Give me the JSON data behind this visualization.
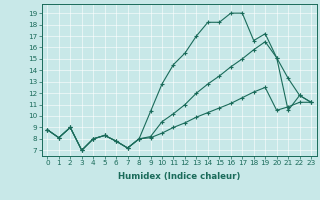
{
  "title": "",
  "xlabel": "Humidex (Indice chaleur)",
  "bg_color": "#c8e8e8",
  "line_color": "#1a6b5a",
  "xlim": [
    -0.5,
    23.5
  ],
  "ylim": [
    6.5,
    19.8
  ],
  "yticks": [
    7,
    8,
    9,
    10,
    11,
    12,
    13,
    14,
    15,
    16,
    17,
    18,
    19
  ],
  "xticks": [
    0,
    1,
    2,
    3,
    4,
    5,
    6,
    7,
    8,
    9,
    10,
    11,
    12,
    13,
    14,
    15,
    16,
    17,
    18,
    19,
    20,
    21,
    22,
    23
  ],
  "line1_x": [
    0,
    1,
    2,
    3,
    4,
    5,
    6,
    7,
    8,
    9,
    10,
    11,
    12,
    13,
    14,
    15,
    16,
    17,
    18,
    19,
    20,
    21,
    22,
    23
  ],
  "line1_y": [
    8.8,
    8.1,
    9.0,
    7.0,
    8.0,
    8.3,
    7.8,
    7.2,
    8.0,
    10.4,
    12.8,
    14.5,
    15.5,
    17.0,
    18.2,
    18.2,
    19.0,
    19.0,
    16.6,
    17.2,
    15.1,
    13.3,
    11.8,
    11.2
  ],
  "line2_x": [
    0,
    1,
    2,
    3,
    4,
    5,
    6,
    7,
    8,
    9,
    10,
    11,
    12,
    13,
    14,
    15,
    16,
    17,
    18,
    19,
    20,
    21,
    22,
    23
  ],
  "line2_y": [
    8.8,
    8.1,
    9.0,
    7.0,
    8.0,
    8.3,
    7.8,
    7.2,
    8.0,
    8.2,
    9.5,
    10.2,
    11.0,
    12.0,
    12.8,
    13.5,
    14.3,
    15.0,
    15.8,
    16.5,
    15.1,
    10.5,
    11.8,
    11.2
  ],
  "line3_x": [
    0,
    1,
    2,
    3,
    4,
    5,
    6,
    7,
    8,
    9,
    10,
    11,
    12,
    13,
    14,
    15,
    16,
    17,
    18,
    19,
    20,
    21,
    22,
    23
  ],
  "line3_y": [
    8.8,
    8.1,
    9.0,
    7.0,
    8.0,
    8.3,
    7.8,
    7.2,
    8.0,
    8.1,
    8.5,
    9.0,
    9.4,
    9.9,
    10.3,
    10.7,
    11.1,
    11.6,
    12.1,
    12.5,
    10.5,
    10.8,
    11.2,
    11.2
  ],
  "tick_fontsize": 5.2,
  "xlabel_fontsize": 6.2
}
